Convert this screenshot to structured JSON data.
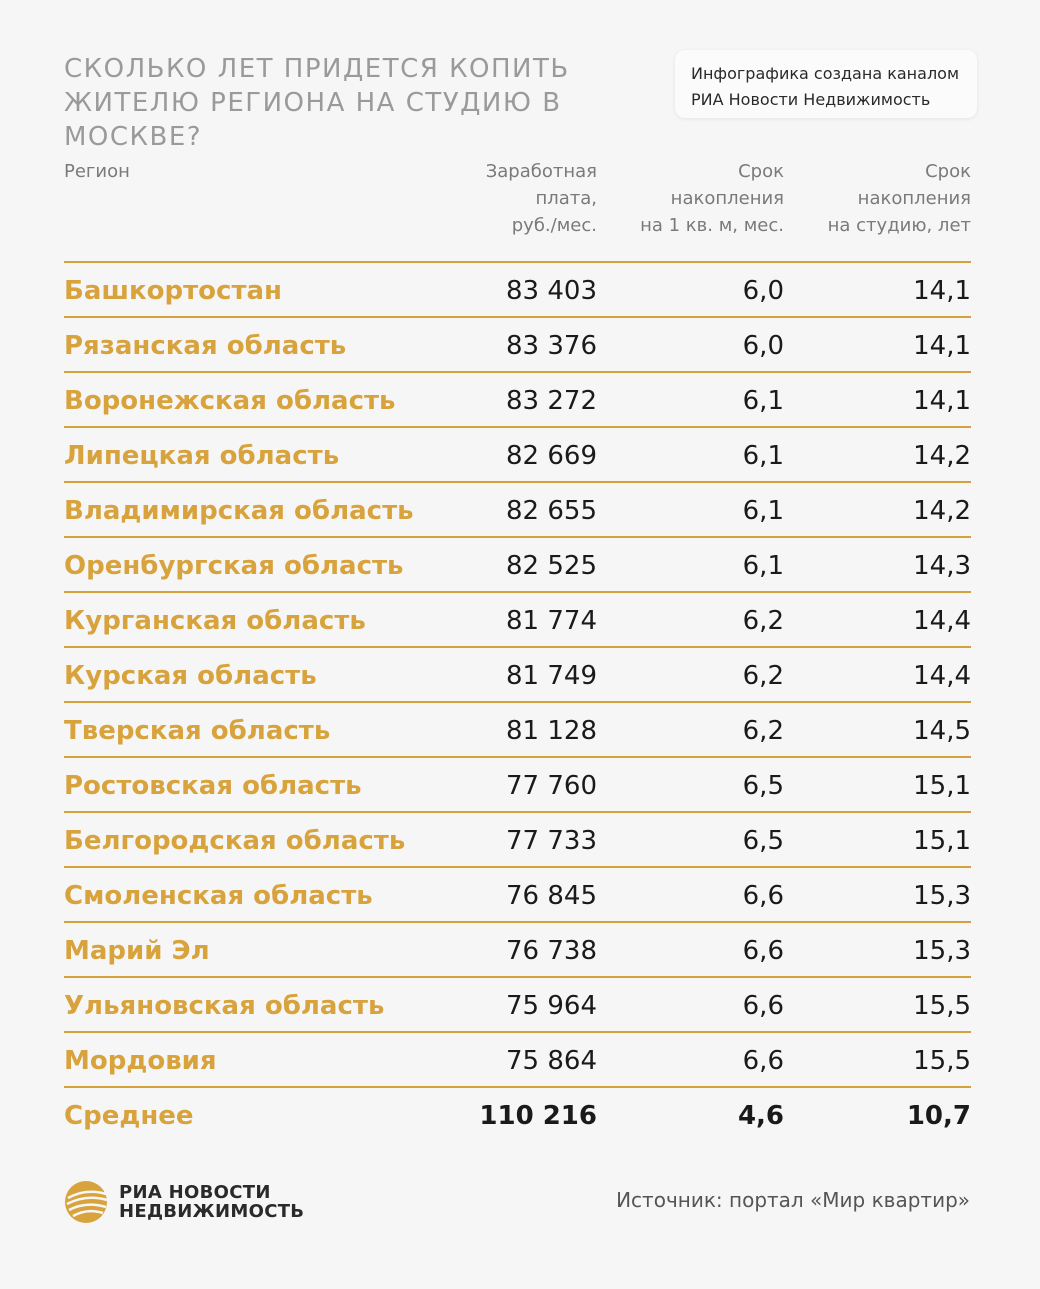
{
  "title": "Сколько лет придется копить жителю региона на студию в Москве?",
  "credit": {
    "line1": "Инфографика создана каналом",
    "line2": "РИА Новости Недвижимость"
  },
  "columns": {
    "region": "Регион",
    "salary": [
      "Заработная",
      "плата,",
      "руб./мес."
    ],
    "per_sqm": [
      "Срок",
      "накопления",
      "на 1 кв. м, мес."
    ],
    "studio": [
      "Срок",
      "накопления",
      "на студию, лет"
    ]
  },
  "rows": [
    {
      "region": "Башкортостан",
      "salary": "83 403",
      "per_sqm": "6,0",
      "studio": "14,1"
    },
    {
      "region": "Рязанская область",
      "salary": "83 376",
      "per_sqm": "6,0",
      "studio": "14,1"
    },
    {
      "region": "Воронежская область",
      "salary": "83 272",
      "per_sqm": "6,1",
      "studio": "14,1"
    },
    {
      "region": "Липецкая область",
      "salary": "82 669",
      "per_sqm": "6,1",
      "studio": "14,2"
    },
    {
      "region": "Владимирская область",
      "salary": "82 655",
      "per_sqm": "6,1",
      "studio": "14,2"
    },
    {
      "region": "Оренбургская область",
      "salary": "82 525",
      "per_sqm": "6,1",
      "studio": "14,3"
    },
    {
      "region": "Курганская область",
      "salary": "81 774",
      "per_sqm": "6,2",
      "studio": "14,4"
    },
    {
      "region": "Курская область",
      "salary": "81 749",
      "per_sqm": "6,2",
      "studio": "14,4"
    },
    {
      "region": "Тверская область",
      "salary": "81 128",
      "per_sqm": "6,2",
      "studio": "14,5"
    },
    {
      "region": "Ростовская область",
      "salary": "77 760",
      "per_sqm": "6,5",
      "studio": "15,1"
    },
    {
      "region": "Белгородская область",
      "salary": "77 733",
      "per_sqm": "6,5",
      "studio": "15,1"
    },
    {
      "region": "Смоленская область",
      "salary": "76 845",
      "per_sqm": "6,6",
      "studio": "15,3"
    },
    {
      "region": "Марий Эл",
      "salary": "76 738",
      "per_sqm": "6,6",
      "studio": "15,3"
    },
    {
      "region": "Ульяновская область",
      "salary": "75 964",
      "per_sqm": "6,6",
      "studio": "15,5"
    },
    {
      "region": "Мордовия",
      "salary": "75 864",
      "per_sqm": "6,6",
      "studio": "15,5"
    }
  ],
  "total": {
    "region": "Среднее",
    "salary": "110 216",
    "per_sqm": "4,6",
    "studio": "10,7"
  },
  "logo": {
    "line1": "РИА НОВОСТИ",
    "line2": "НЕДВИЖИМОСТЬ",
    "icon": "ria-globe-icon"
  },
  "source": "Источник: портал «Мир квартир»",
  "colors": {
    "accent": "#d8a33d",
    "divider": "#d4a13a",
    "background": "#f6f6f6"
  }
}
